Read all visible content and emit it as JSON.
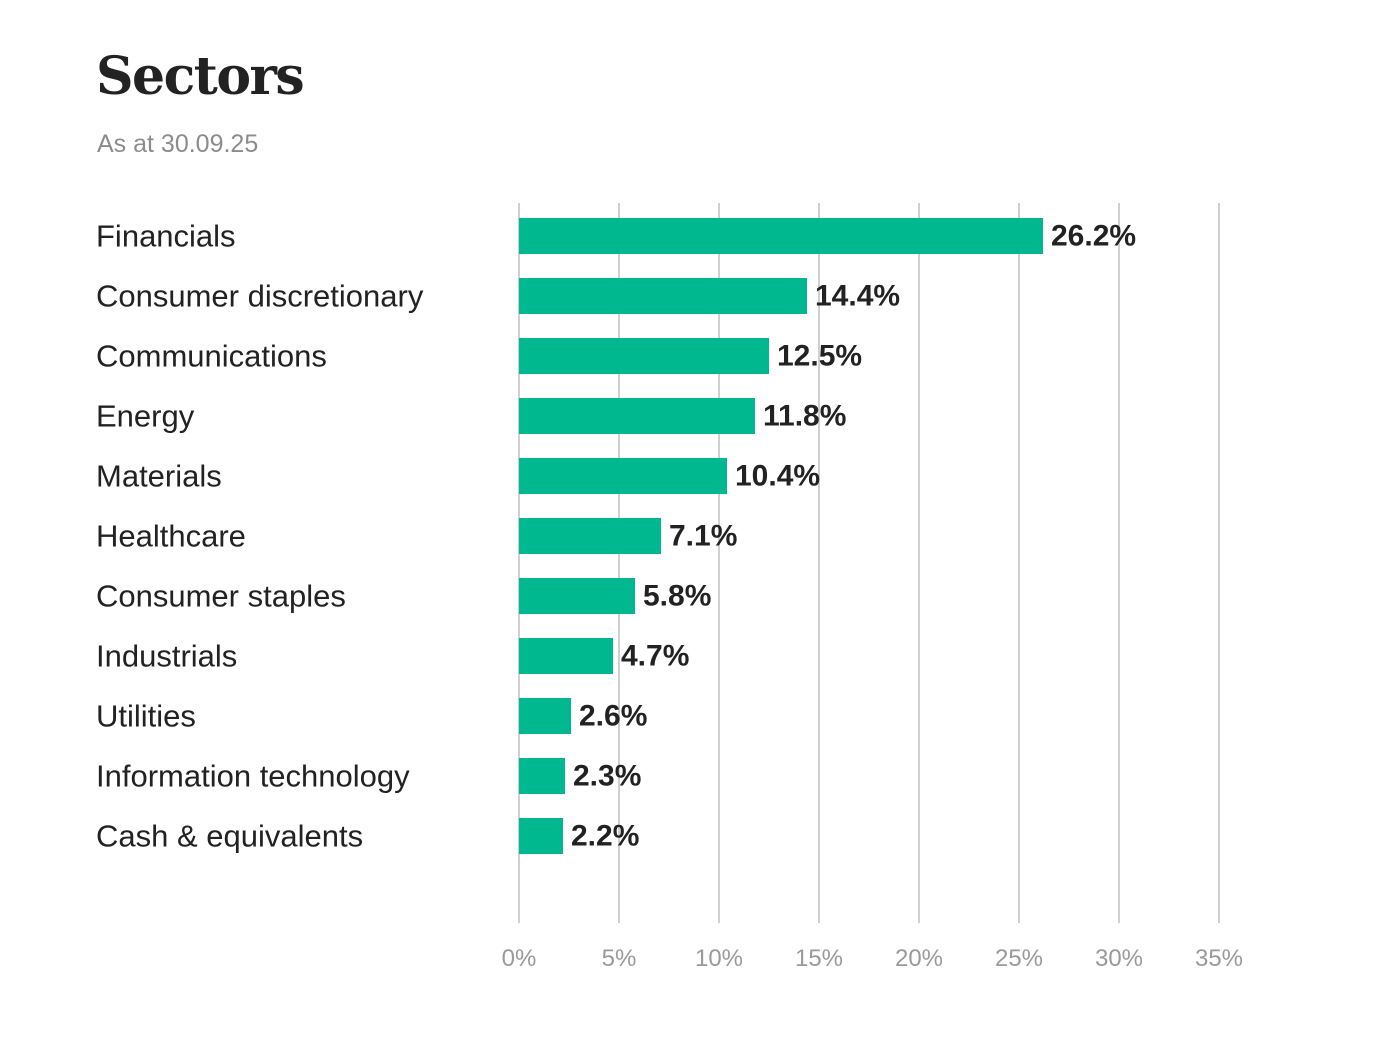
{
  "header": {
    "title": "Sectors",
    "subtitle": "As at 30.09.25"
  },
  "chart_data": {
    "type": "bar",
    "orientation": "horizontal",
    "title": "Sectors",
    "subtitle": "As at 30.09.25",
    "categories": [
      "Financials",
      "Consumer discretionary",
      "Communications",
      "Energy",
      "Materials",
      "Healthcare",
      "Consumer staples",
      "Industrials",
      "Utilities",
      "Information technology",
      "Cash & equivalents"
    ],
    "values": [
      26.2,
      14.4,
      12.5,
      11.8,
      10.4,
      7.1,
      5.8,
      4.7,
      2.6,
      2.3,
      2.2
    ],
    "value_labels": [
      "26.2%",
      "14.4%",
      "12.5%",
      "11.8%",
      "10.4%",
      "7.1%",
      "5.8%",
      "4.7%",
      "2.6%",
      "2.3%",
      "2.2%"
    ],
    "xlim": [
      0,
      35
    ],
    "xticks": [
      0,
      5,
      10,
      15,
      20,
      25,
      30,
      35
    ],
    "xtick_labels": [
      "0%",
      "5%",
      "10%",
      "15%",
      "20%",
      "25%",
      "30%",
      "35%"
    ],
    "xlabel": "",
    "ylabel": "",
    "grid": "vertical",
    "legend": "none",
    "colors": {
      "bar": "#00b890",
      "grid": "#d0d0d0",
      "text": "#222222",
      "tick": "#9a9a9a",
      "subtitle": "#8c8c8c"
    }
  }
}
